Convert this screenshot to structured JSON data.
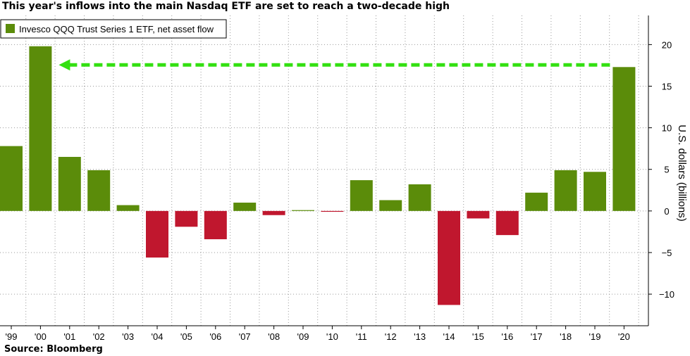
{
  "title": "This year's inflows into the main Nasdaq ETF are set to reach a two-decade high",
  "source": "Source: Bloomberg",
  "colors": {
    "positive": "#5b8c0a",
    "negative": "#c0172e",
    "arrow": "#33e011",
    "grid": "#9a9a9a"
  },
  "chart_data": {
    "type": "bar",
    "categories": [
      "'99",
      "'00",
      "'01",
      "'02",
      "'03",
      "'04",
      "'05",
      "'06",
      "'07",
      "'08",
      "'09",
      "'10",
      "'11",
      "'12",
      "'13",
      "'14",
      "'15",
      "'16",
      "'17",
      "'18",
      "'19",
      "'20"
    ],
    "series": [
      {
        "name": "Invesco QQQ Trust Series 1 ETF, net asset flow",
        "values": [
          7.8,
          19.8,
          6.5,
          4.9,
          0.7,
          -5.6,
          -1.9,
          -3.4,
          1.0,
          -0.5,
          0.1,
          -0.1,
          3.7,
          1.3,
          3.2,
          -11.3,
          -0.9,
          -2.9,
          2.2,
          4.9,
          4.7,
          17.3
        ]
      }
    ],
    "yticks": [
      20,
      15,
      10,
      5,
      0,
      -5,
      -10
    ],
    "ylim": [
      -13.8,
      23.5
    ],
    "ylabel": "U.S. dollars (billions)",
    "xlabel": "",
    "y_axis_position": "right",
    "grid": true,
    "legend_position": "top-left",
    "annotation": {
      "type": "dashed-arrow",
      "from_category": "'20",
      "to_category": "'00",
      "value": 17.3
    }
  }
}
